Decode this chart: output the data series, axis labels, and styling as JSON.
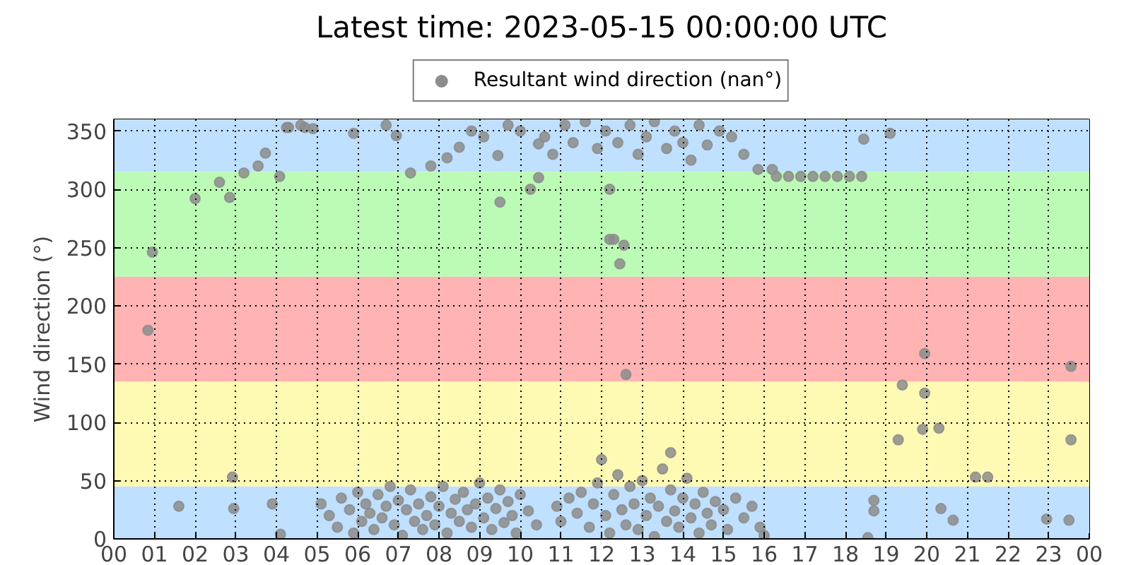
{
  "chart_data": {
    "type": "scatter",
    "title": "Latest time: 2023-05-15 00:00:00 UTC",
    "ylabel": "Wind direction (°)",
    "xlim": [
      0,
      24
    ],
    "ylim": [
      0,
      360
    ],
    "xticks": [
      {
        "value": 0,
        "label": "00"
      },
      {
        "value": 1,
        "label": "01"
      },
      {
        "value": 2,
        "label": "02"
      },
      {
        "value": 3,
        "label": "03"
      },
      {
        "value": 4,
        "label": "04"
      },
      {
        "value": 5,
        "label": "05"
      },
      {
        "value": 6,
        "label": "06"
      },
      {
        "value": 7,
        "label": "07"
      },
      {
        "value": 8,
        "label": "08"
      },
      {
        "value": 9,
        "label": "09"
      },
      {
        "value": 10,
        "label": "10"
      },
      {
        "value": 11,
        "label": "11"
      },
      {
        "value": 12,
        "label": "12"
      },
      {
        "value": 13,
        "label": "13"
      },
      {
        "value": 14,
        "label": "14"
      },
      {
        "value": 15,
        "label": "15"
      },
      {
        "value": 16,
        "label": "16"
      },
      {
        "value": 17,
        "label": "17"
      },
      {
        "value": 18,
        "label": "18"
      },
      {
        "value": 19,
        "label": "19"
      },
      {
        "value": 20,
        "label": "20"
      },
      {
        "value": 21,
        "label": "21"
      },
      {
        "value": 22,
        "label": "22"
      },
      {
        "value": 23,
        "label": "23"
      },
      {
        "value": 24,
        "label": "00"
      }
    ],
    "yticks": [
      0,
      50,
      100,
      150,
      200,
      250,
      300,
      350
    ],
    "grid": true,
    "legend": "top",
    "marker": "circle",
    "bands": [
      {
        "axis": "y",
        "from": 0,
        "to": 45,
        "color": "#bfe0ff"
      },
      {
        "axis": "y",
        "from": 45,
        "to": 135,
        "color": "#fffab3"
      },
      {
        "axis": "y",
        "from": 135,
        "to": 225,
        "color": "#ffb3b3"
      },
      {
        "axis": "y",
        "from": 225,
        "to": 315,
        "color": "#bbfbb5"
      },
      {
        "axis": "y",
        "from": 315,
        "to": 360,
        "color": "#bfe0ff"
      }
    ],
    "series": [
      {
        "name": "Resultant wind direction (nan°)",
        "color": "#8c8c8c",
        "x": [
          0.84,
          0.95,
          1.6,
          2.0,
          2.6,
          2.85,
          3.2,
          3.55,
          3.73,
          4.08,
          2.92,
          2.95,
          3.9,
          4.1,
          4.25,
          4.7,
          5.9,
          6.95,
          7.3,
          7.8,
          8.2,
          8.5,
          9.5,
          9.45,
          10.0,
          10.45,
          10.45,
          10.25,
          12.2,
          12.2,
          12.3,
          12.55,
          12.45,
          12.6,
          13.7,
          15.85,
          16.2,
          16.3,
          16.6,
          16.9,
          17.2,
          17.5,
          17.8,
          18.1,
          18.4,
          18.45,
          19.1,
          19.4,
          19.95,
          19.95,
          19.9,
          20.3,
          19.3,
          21.2,
          21.5,
          23.55,
          23.55,
          22.95,
          23.5,
          20.35,
          20.65,
          18.7,
          18.7,
          18.55,
          5.1,
          5.3,
          5.5,
          5.6,
          5.8,
          5.9,
          6.0,
          6.1,
          6.2,
          6.3,
          6.4,
          6.5,
          6.6,
          6.7,
          6.8,
          6.9,
          7.0,
          7.1,
          7.2,
          7.3,
          7.4,
          7.5,
          7.6,
          7.7,
          7.8,
          7.9,
          8.0,
          8.1,
          8.2,
          8.3,
          8.4,
          8.5,
          8.6,
          8.7,
          8.8,
          8.9,
          9.0,
          9.1,
          9.2,
          9.3,
          9.4,
          9.5,
          9.6,
          9.7,
          9.8,
          9.9,
          10.0,
          10.2,
          10.4,
          10.9,
          11.0,
          11.2,
          11.4,
          11.5,
          11.7,
          11.8,
          11.9,
          12.0,
          12.1,
          12.2,
          12.3,
          12.4,
          12.5,
          12.6,
          12.7,
          12.8,
          12.9,
          13.0,
          13.1,
          13.2,
          13.3,
          13.4,
          13.5,
          13.6,
          13.7,
          13.8,
          13.9,
          14.0,
          14.1,
          14.2,
          14.3,
          14.4,
          14.5,
          14.6,
          14.7,
          14.8,
          15.0,
          15.1,
          15.3,
          15.5,
          15.7,
          15.9,
          16.0,
          10.6,
          10.8,
          11.1,
          11.3,
          11.6,
          11.9,
          12.1,
          12.4,
          12.7,
          12.9,
          13.1,
          13.3,
          13.6,
          13.8,
          14.0,
          14.2,
          14.4,
          14.6,
          14.9,
          15.2,
          15.5,
          4.3,
          4.6,
          4.9,
          6.7,
          8.8,
          9.1,
          9.7
        ],
        "values": [
          179,
          246,
          28,
          292,
          306,
          293,
          314,
          320,
          331,
          311,
          53,
          26,
          30,
          4,
          353,
          353,
          348,
          346,
          314,
          320,
          327,
          336,
          289,
          329,
          350,
          339,
          310,
          300,
          257,
          300,
          257,
          252,
          236,
          141,
          74,
          317,
          317,
          311,
          311,
          311,
          311,
          311,
          311,
          311,
          311,
          343,
          348,
          132,
          159,
          125,
          94,
          95,
          85,
          53,
          53,
          148,
          85,
          17,
          16,
          26,
          16,
          33,
          24,
          1,
          30,
          20,
          10,
          35,
          25,
          5,
          40,
          15,
          30,
          22,
          8,
          38,
          18,
          28,
          45,
          12,
          33,
          3,
          25,
          42,
          15,
          30,
          8,
          20,
          36,
          12,
          28,
          45,
          5,
          22,
          34,
          15,
          40,
          25,
          10,
          30,
          48,
          18,
          35,
          8,
          26,
          42,
          14,
          32,
          20,
          5,
          38,
          24,
          12,
          28,
          15,
          35,
          22,
          40,
          10,
          30,
          48,
          68,
          20,
          5,
          38,
          55,
          25,
          12,
          45,
          30,
          8,
          50,
          20,
          35,
          2,
          28,
          60,
          15,
          42,
          24,
          10,
          35,
          52,
          18,
          30,
          5,
          40,
          22,
          12,
          32,
          25,
          8,
          35,
          18,
          28,
          10,
          3,
          345,
          330,
          355,
          340,
          358,
          335,
          350,
          340,
          355,
          330,
          345,
          358,
          335,
          350,
          340,
          325,
          355,
          338,
          350,
          345,
          330,
          353,
          355,
          352,
          355,
          350,
          345,
          355
        ]
      }
    ]
  }
}
